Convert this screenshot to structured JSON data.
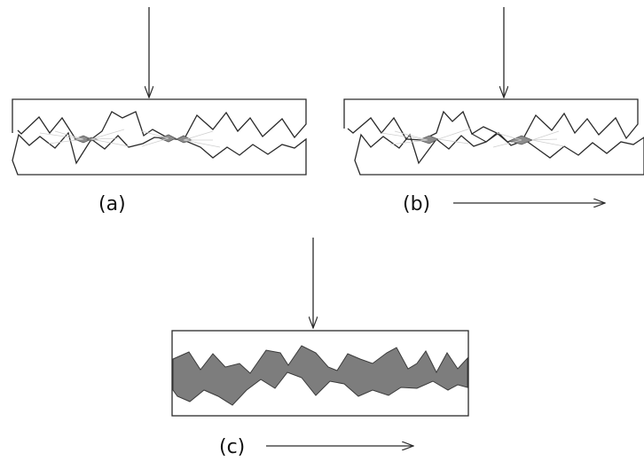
{
  "panels": [
    {
      "label": "(a)",
      "has_shear_arrow": false
    },
    {
      "label": "(b)",
      "has_shear_arrow": true
    },
    {
      "label": "(c)",
      "has_shear_arrow": true
    }
  ],
  "colors": {
    "outline": "#2a2a2a",
    "contact_fill": "#8c8c8c",
    "crack_fill": "#7d7d7d",
    "faint_lines": "#cfcfcf"
  }
}
